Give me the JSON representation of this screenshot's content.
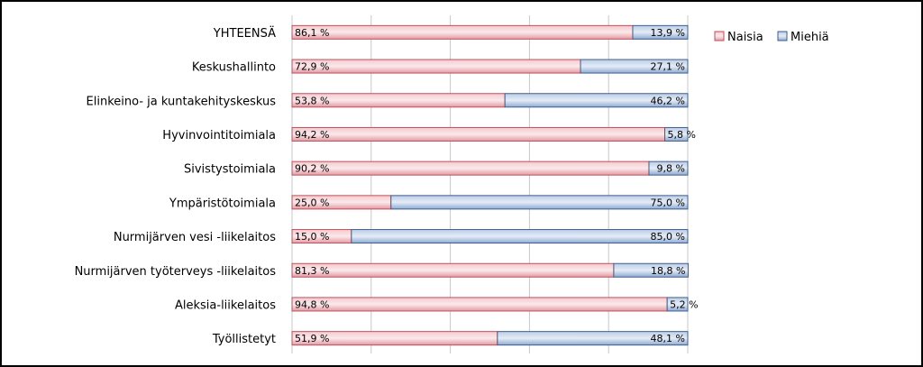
{
  "chart_data": {
    "type": "bar",
    "orientation": "horizontal",
    "stacked": true,
    "percent": true,
    "categories": [
      "YHTEENSÄ",
      "Keskushallinto",
      "Elinkeino- ja kuntakehityskeskus",
      "Hyvinvointitoimiala",
      "Sivistystoimiala",
      "Ympäristötoimiala",
      "Nurmijärven vesi -liikelaitos",
      "Nurmijärven työterveys -liikelaitos",
      "Aleksia-liikelaitos",
      "Työllistetyt"
    ],
    "series": [
      {
        "name": "Naisia",
        "color": "#e8a0a8",
        "values": [
          86.1,
          72.9,
          53.8,
          94.2,
          90.2,
          25.0,
          15.0,
          81.3,
          94.8,
          51.9
        ],
        "labels": [
          "86,1 %",
          "72,9 %",
          "53,8 %",
          "94,2 %",
          "90,2 %",
          "25,0 %",
          "15,0 %",
          "81,3 %",
          "94,8 %",
          "51,9 %"
        ]
      },
      {
        "name": "Miehiä",
        "color": "#9ab6da",
        "values": [
          13.9,
          27.1,
          46.2,
          5.8,
          9.8,
          75.0,
          85.0,
          18.8,
          5.2,
          48.1
        ],
        "labels": [
          "13,9 %",
          "27,1 %",
          "46,2 %",
          "5,8 %",
          "9,8 %",
          "75,0 %",
          "85,0 %",
          "18,8 %",
          "5,2 %",
          "48,1 %"
        ]
      }
    ],
    "xlim": [
      0,
      100
    ],
    "grid": true,
    "legend": "top-right"
  }
}
